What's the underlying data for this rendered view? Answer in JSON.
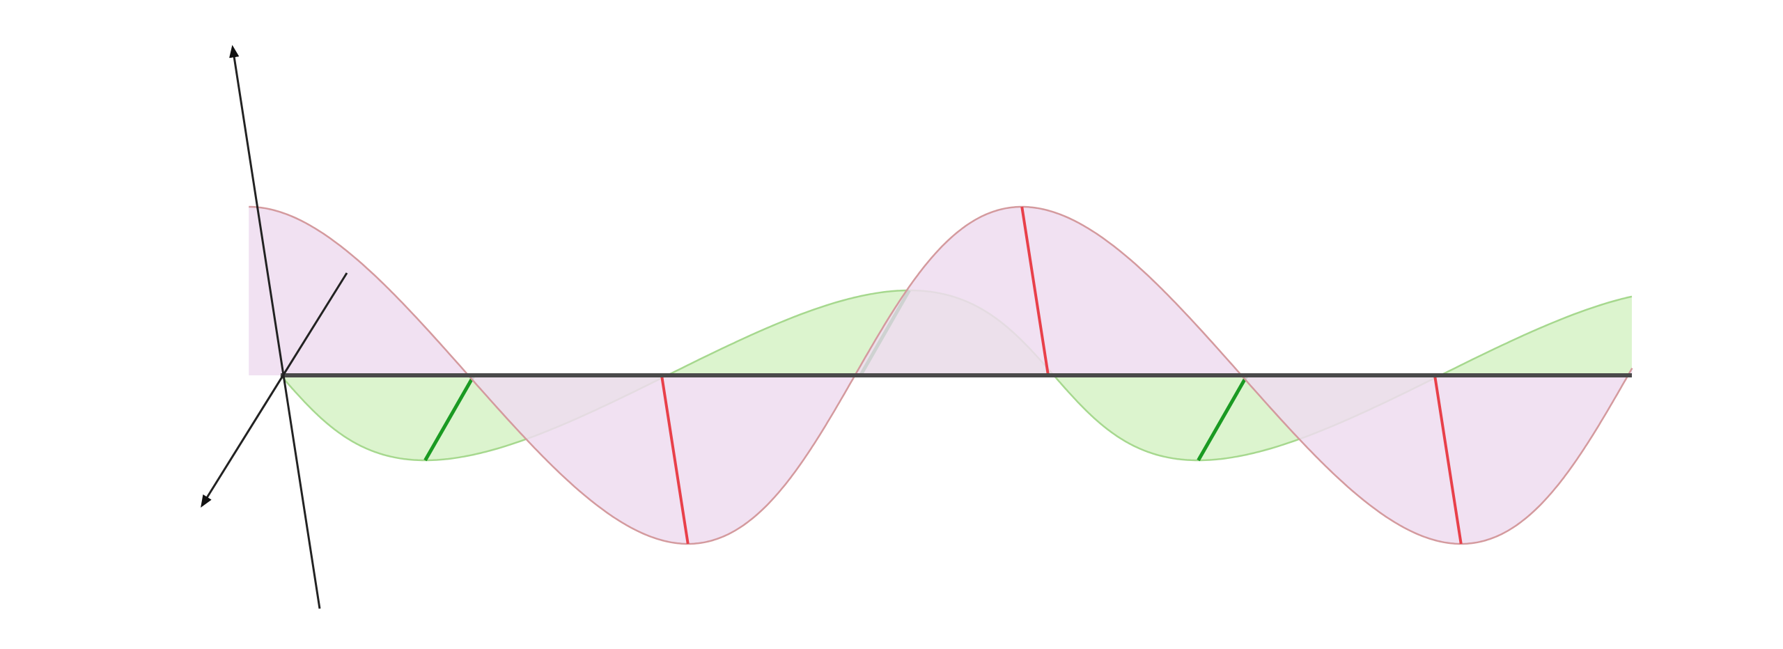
{
  "diagram": {
    "type": "electromagnetic-wave-3d",
    "colors": {
      "axis": "#4a4a4a",
      "red_wave_fill": "#efdcf0",
      "red_wave_stroke": "#d49a9e",
      "red_vector": "#e8404a",
      "green_wave_fill": "#d6f2c6",
      "green_wave_stroke": "#a6d88e",
      "green_vector": "#1a9a22"
    },
    "waves": [
      {
        "name": "",
        "color_key": "red",
        "plane": "vertical",
        "cycles_shown": 1.75
      },
      {
        "name": "",
        "color_key": "green",
        "plane": "horizontal",
        "cycles_shown": 1.75
      }
    ]
  }
}
